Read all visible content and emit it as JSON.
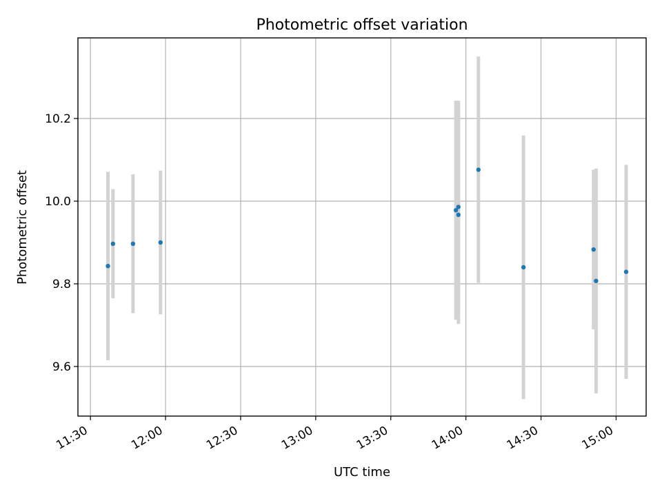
{
  "chart_data": {
    "type": "scatter",
    "title": "Photometric offset variation",
    "xlabel": "UTC time",
    "ylabel": "Photometric offset",
    "x_axis_kind": "time",
    "xlim": [
      "11:25",
      "15:12"
    ],
    "ylim": [
      9.48,
      10.395
    ],
    "x_ticks": [
      "11:30",
      "12:00",
      "12:30",
      "13:00",
      "13:30",
      "14:00",
      "14:30",
      "15:00"
    ],
    "y_ticks": [
      9.6,
      9.8,
      10.0,
      10.2
    ],
    "y_tick_labels": [
      "9.6",
      "9.8",
      "10.0",
      "10.2"
    ],
    "grid": true,
    "colors": {
      "points": "#1f77b4",
      "error_bars": "#d3d3d3"
    },
    "series": [
      {
        "points": [
          {
            "x": "11:37",
            "y": 9.843,
            "y_low": 9.615,
            "y_high": 10.071
          },
          {
            "x": "11:39",
            "y": 9.897,
            "y_low": 9.765,
            "y_high": 10.029
          },
          {
            "x": "11:47",
            "y": 9.897,
            "y_low": 9.729,
            "y_high": 10.065
          },
          {
            "x": "11:58",
            "y": 9.9,
            "y_low": 9.726,
            "y_high": 10.074
          },
          {
            "x": "13:56",
            "y": 9.978,
            "y_low": 9.713,
            "y_high": 10.243
          },
          {
            "x": "13:57",
            "y": 9.967,
            "y_low": 9.703,
            "y_high": 10.231
          },
          {
            "x": "13:57",
            "y": 9.986,
            "y_low": 9.729,
            "y_high": 10.243
          },
          {
            "x": "14:05",
            "y": 10.076,
            "y_low": 9.802,
            "y_high": 10.35
          },
          {
            "x": "14:23",
            "y": 9.84,
            "y_low": 9.521,
            "y_high": 10.159
          },
          {
            "x": "14:51",
            "y": 9.883,
            "y_low": 9.69,
            "y_high": 10.076
          },
          {
            "x": "14:52",
            "y": 9.807,
            "y_low": 9.535,
            "y_high": 10.079
          },
          {
            "x": "15:04",
            "y": 9.829,
            "y_low": 9.57,
            "y_high": 10.088
          }
        ]
      }
    ]
  }
}
